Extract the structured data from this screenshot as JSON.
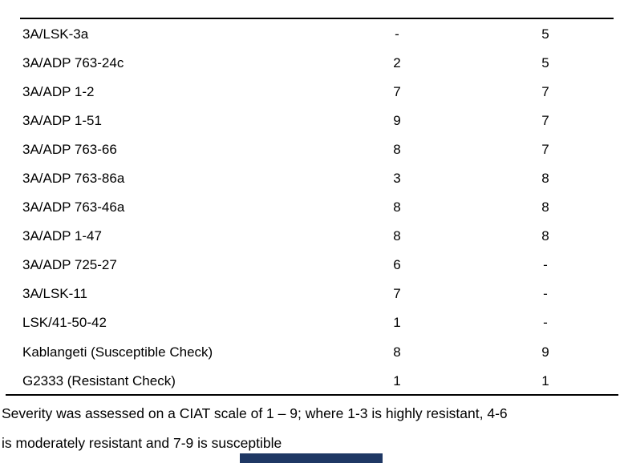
{
  "page": {
    "background": "#ffffff"
  },
  "table": {
    "rows": [
      {
        "genotype": "3A/LSK-3a",
        "severity_col1": "-",
        "severity_col2": "5"
      },
      {
        "genotype": "3A/ADP 763-24c",
        "severity_col1": "2",
        "severity_col2": "5"
      },
      {
        "genotype": "3A/ADP 1-2",
        "severity_col1": "7",
        "severity_col2": "7"
      },
      {
        "genotype": "3A/ADP 1-51",
        "severity_col1": "9",
        "severity_col2": "7"
      },
      {
        "genotype": "3A/ADP 763-66",
        "severity_col1": "8",
        "severity_col2": "7"
      },
      {
        "genotype": "3A/ADP 763-86a",
        "severity_col1": "3",
        "severity_col2": "8"
      },
      {
        "genotype": "3A/ADP 763-46a",
        "severity_col1": "8",
        "severity_col2": "8"
      },
      {
        "genotype": "3A/ADP 1-47",
        "severity_col1": "8",
        "severity_col2": "8"
      },
      {
        "genotype": "3A/ADP 725-27",
        "severity_col1": "6",
        "severity_col2": "-"
      },
      {
        "genotype": "3A/LSK-11",
        "severity_col1": "7",
        "severity_col2": "-"
      },
      {
        "genotype": "LSK/41-50-42",
        "severity_col1": "1",
        "severity_col2": "-"
      },
      {
        "genotype": "Kablangeti (Susceptible Check)",
        "severity_col1": "8",
        "severity_col2": "9"
      },
      {
        "genotype": "G2333 (Resistant Check)",
        "severity_col1": "1",
        "severity_col2": "1"
      }
    ]
  },
  "footnote": {
    "line1": "Severity was assessed on a CIAT scale of 1 – 9; where 1-3 is highly resistant, 4-6",
    "line2": "is moderately resistant and 7-9 is susceptible"
  },
  "colors": {
    "text": "#000000",
    "rule": "#000000",
    "accent_bar": "#1f3864"
  }
}
